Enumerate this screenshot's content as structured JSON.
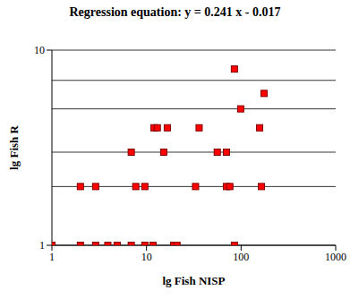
{
  "chart_data": {
    "type": "scatter",
    "title": "Regression equation: y = 0.241 x - 0.017",
    "x_label": "lg Fish NISP",
    "y_label": "lg Fish R",
    "log": true,
    "grid": "y",
    "xlim": [
      1,
      1000
    ],
    "ylim": [
      1,
      10
    ],
    "xticks": [
      1,
      10,
      100,
      1000
    ],
    "yticks": [
      1,
      10
    ],
    "series": [
      {
        "name": "Fish",
        "color": "#ff0000",
        "marker": "square",
        "x": [
          1,
          2,
          2.9,
          3.9,
          4.9,
          6.9,
          9.6,
          11.7,
          19.4,
          21,
          85,
          2,
          2.9,
          7.7,
          9.6,
          33,
          70,
          76,
          164,
          6.9,
          15.2,
          56,
          70,
          12,
          13,
          16.6,
          36,
          157,
          99,
          175,
          85
        ],
        "values": [
          1,
          1,
          1,
          1,
          1,
          1,
          1,
          1,
          1,
          1,
          1,
          2,
          2,
          2,
          2,
          2,
          2,
          2,
          2,
          3,
          3,
          3,
          3,
          4,
          4,
          4,
          4,
          4,
          5,
          6,
          8
        ]
      }
    ]
  }
}
